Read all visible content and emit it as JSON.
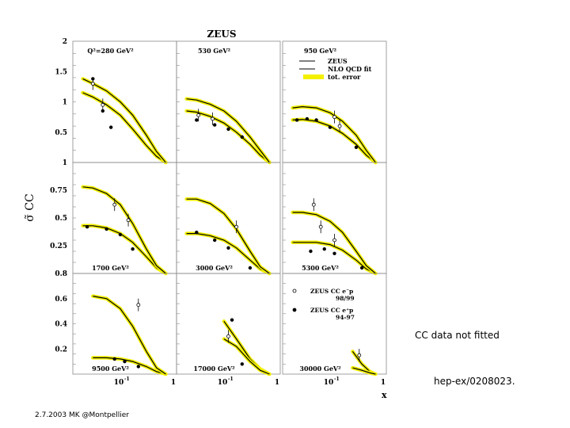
{
  "chart_data": {
    "type": "line",
    "title": "ZEUS",
    "ylabel": "σ̃ CC",
    "xlabel": "x",
    "colors": {
      "band": "#f3f000",
      "line": "#000000",
      "frame": "#8a8a8a"
    },
    "legend_top": {
      "entries": [
        {
          "label": "ZEUS",
          "marker": "line"
        },
        {
          "label": "NLO QCD fit",
          "marker": "line"
        },
        {
          "label": "tot. error",
          "marker": "band"
        }
      ]
    },
    "legend_bottom": {
      "entries": [
        {
          "label": "ZEUS CC e⁻p",
          "sub": "98/99",
          "marker": "open"
        },
        {
          "label": "ZEUS CC e⁺p",
          "sub": "94-97",
          "marker": "filled"
        }
      ]
    },
    "row_ticks": [
      {
        "ylim": [
          0,
          2
        ],
        "ticks": [
          {
            "v": 0.5,
            "label": "0.5"
          },
          {
            "v": 1,
            "label": "1"
          },
          {
            "v": 1.5,
            "label": "1.5"
          },
          {
            "v": 2,
            "label": "2"
          }
        ]
      },
      {
        "ylim": [
          0,
          1
        ],
        "ticks": [
          {
            "v": 0.25,
            "label": "0.25"
          },
          {
            "v": 0.5,
            "label": "0.5"
          },
          {
            "v": 0.75,
            "label": "0.75"
          },
          {
            "v": 1,
            "label": "1"
          }
        ]
      },
      {
        "ylim": [
          0,
          0.8
        ],
        "ticks": [
          {
            "v": 0.2,
            "label": "0.2"
          },
          {
            "v": 0.4,
            "label": "0.4"
          },
          {
            "v": 0.6,
            "label": "0.6"
          },
          {
            "v": 0.8,
            "label": "0.8"
          }
        ]
      }
    ],
    "x_ticks": [
      "10",
      "1",
      "1"
    ],
    "x_tick_exponents": [
      "-1",
      "",
      ""
    ],
    "xlim": [
      0.01,
      1
    ],
    "panels": [
      {
        "q2": "Q²=280 GeV²",
        "curves": [
          {
            "x": [
              0.012,
              0.02,
              0.04,
              0.08,
              0.15,
              0.3,
              0.5,
              0.8
            ],
            "y": [
              1.15,
              1.08,
              0.95,
              0.78,
              0.55,
              0.28,
              0.1,
              0.0
            ]
          },
          {
            "x": [
              0.012,
              0.02,
              0.04,
              0.08,
              0.15,
              0.3,
              0.5,
              0.8
            ],
            "y": [
              1.38,
              1.3,
              1.18,
              1.0,
              0.78,
              0.45,
              0.18,
              0.0
            ]
          }
        ],
        "points_filled": [
          {
            "x": 0.02,
            "y": 1.38
          },
          {
            "x": 0.033,
            "y": 0.85
          },
          {
            "x": 0.05,
            "y": 0.58
          }
        ],
        "points_open": [
          {
            "x": 0.02,
            "y": 1.3
          },
          {
            "x": 0.033,
            "y": 0.95
          }
        ]
      },
      {
        "q2": "530 GeV²",
        "curves": [
          {
            "x": [
              0.012,
              0.02,
              0.04,
              0.08,
              0.15,
              0.3,
              0.5,
              0.8
            ],
            "y": [
              0.85,
              0.83,
              0.76,
              0.65,
              0.5,
              0.3,
              0.12,
              0.0
            ]
          },
          {
            "x": [
              0.012,
              0.02,
              0.04,
              0.08,
              0.15,
              0.3,
              0.5,
              0.8
            ],
            "y": [
              1.05,
              1.03,
              0.96,
              0.85,
              0.68,
              0.42,
              0.2,
              0.0
            ]
          }
        ],
        "points_filled": [
          {
            "x": 0.02,
            "y": 0.7
          },
          {
            "x": 0.05,
            "y": 0.62
          },
          {
            "x": 0.1,
            "y": 0.55
          },
          {
            "x": 0.2,
            "y": 0.42
          }
        ],
        "points_open": [
          {
            "x": 0.022,
            "y": 0.78
          },
          {
            "x": 0.045,
            "y": 0.72
          }
        ]
      },
      {
        "q2": "950 GeV²",
        "curves": [
          {
            "x": [
              0.012,
              0.02,
              0.04,
              0.08,
              0.15,
              0.3,
              0.5,
              0.8
            ],
            "y": [
              0.7,
              0.71,
              0.68,
              0.6,
              0.48,
              0.3,
              0.12,
              0.0
            ]
          },
          {
            "x": [
              0.012,
              0.02,
              0.04,
              0.08,
              0.15,
              0.3,
              0.5,
              0.8
            ],
            "y": [
              0.9,
              0.92,
              0.9,
              0.82,
              0.68,
              0.45,
              0.2,
              0.0
            ]
          }
        ],
        "points_filled": [
          {
            "x": 0.015,
            "y": 0.7
          },
          {
            "x": 0.025,
            "y": 0.72
          },
          {
            "x": 0.04,
            "y": 0.7
          },
          {
            "x": 0.08,
            "y": 0.58
          },
          {
            "x": 0.3,
            "y": 0.25
          }
        ],
        "points_open": [
          {
            "x": 0.1,
            "y": 0.75
          },
          {
            "x": 0.13,
            "y": 0.6
          }
        ]
      },
      {
        "q2": "1700 GeV²",
        "curves": [
          {
            "x": [
              0.012,
              0.02,
              0.04,
              0.08,
              0.15,
              0.3,
              0.5,
              0.8
            ],
            "y": [
              0.43,
              0.43,
              0.41,
              0.36,
              0.28,
              0.15,
              0.05,
              0.0
            ]
          },
          {
            "x": [
              0.012,
              0.02,
              0.04,
              0.08,
              0.15,
              0.3,
              0.5,
              0.8
            ],
            "y": [
              0.78,
              0.77,
              0.72,
              0.62,
              0.45,
              0.22,
              0.07,
              0.0
            ]
          }
        ],
        "points_filled": [
          {
            "x": 0.015,
            "y": 0.42
          },
          {
            "x": 0.04,
            "y": 0.4
          },
          {
            "x": 0.08,
            "y": 0.35
          },
          {
            "x": 0.15,
            "y": 0.22
          }
        ],
        "points_open": [
          {
            "x": 0.06,
            "y": 0.62
          },
          {
            "x": 0.12,
            "y": 0.48
          }
        ]
      },
      {
        "q2": "3000 GeV²",
        "curves": [
          {
            "x": [
              0.012,
              0.02,
              0.04,
              0.08,
              0.15,
              0.3,
              0.5,
              0.8
            ],
            "y": [
              0.36,
              0.36,
              0.34,
              0.3,
              0.23,
              0.12,
              0.04,
              0.0
            ]
          },
          {
            "x": [
              0.012,
              0.02,
              0.04,
              0.08,
              0.15,
              0.3,
              0.5,
              0.8
            ],
            "y": [
              0.67,
              0.67,
              0.63,
              0.54,
              0.4,
              0.2,
              0.06,
              0.0
            ]
          }
        ],
        "points_filled": [
          {
            "x": 0.02,
            "y": 0.37
          },
          {
            "x": 0.05,
            "y": 0.3
          },
          {
            "x": 0.1,
            "y": 0.23
          },
          {
            "x": 0.3,
            "y": 0.05
          }
        ],
        "points_open": [
          {
            "x": 0.15,
            "y": 0.42
          }
        ]
      },
      {
        "q2": "5300 GeV²",
        "curves": [
          {
            "x": [
              0.012,
              0.02,
              0.04,
              0.08,
              0.15,
              0.3,
              0.5,
              0.8
            ],
            "y": [
              0.28,
              0.28,
              0.28,
              0.26,
              0.21,
              0.12,
              0.04,
              0.0
            ]
          },
          {
            "x": [
              0.012,
              0.02,
              0.04,
              0.08,
              0.15,
              0.3,
              0.5,
              0.8
            ],
            "y": [
              0.55,
              0.55,
              0.53,
              0.47,
              0.37,
              0.2,
              0.07,
              0.0
            ]
          }
        ],
        "points_filled": [
          {
            "x": 0.03,
            "y": 0.2
          },
          {
            "x": 0.06,
            "y": 0.22
          },
          {
            "x": 0.1,
            "y": 0.18
          },
          {
            "x": 0.4,
            "y": 0.05
          }
        ],
        "points_open": [
          {
            "x": 0.035,
            "y": 0.62
          },
          {
            "x": 0.05,
            "y": 0.42
          },
          {
            "x": 0.1,
            "y": 0.3
          }
        ]
      },
      {
        "q2": "9500 GeV²",
        "curves": [
          {
            "x": [
              0.02,
              0.04,
              0.08,
              0.15,
              0.3,
              0.5,
              0.8
            ],
            "y": [
              0.13,
              0.13,
              0.12,
              0.1,
              0.06,
              0.02,
              0.0
            ]
          },
          {
            "x": [
              0.02,
              0.04,
              0.08,
              0.15,
              0.3,
              0.5,
              0.8
            ],
            "y": [
              0.62,
              0.6,
              0.52,
              0.38,
              0.18,
              0.05,
              0.0
            ]
          }
        ],
        "points_filled": [
          {
            "x": 0.06,
            "y": 0.12
          },
          {
            "x": 0.1,
            "y": 0.1
          },
          {
            "x": 0.2,
            "y": 0.06
          }
        ],
        "points_open": [
          {
            "x": 0.2,
            "y": 0.55
          }
        ]
      },
      {
        "q2": "17000 GeV²",
        "curves": [
          {
            "x": [
              0.08,
              0.15,
              0.3,
              0.5,
              0.8
            ],
            "y": [
              0.42,
              0.28,
              0.12,
              0.04,
              0.0
            ]
          },
          {
            "x": [
              0.08,
              0.15,
              0.3,
              0.5,
              0.8
            ],
            "y": [
              0.28,
              0.22,
              0.1,
              0.03,
              0.0
            ]
          }
        ],
        "points_filled": [
          {
            "x": 0.12,
            "y": 0.43
          },
          {
            "x": 0.2,
            "y": 0.08
          }
        ],
        "points_open": [
          {
            "x": 0.1,
            "y": 0.3
          }
        ]
      },
      {
        "q2": "30000 GeV²",
        "curves": [
          {
            "x": [
              0.25,
              0.4,
              0.6,
              0.8
            ],
            "y": [
              0.18,
              0.08,
              0.02,
              0.0
            ]
          },
          {
            "x": [
              0.25,
              0.4,
              0.6,
              0.8
            ],
            "y": [
              0.05,
              0.03,
              0.01,
              0.0
            ]
          }
        ],
        "points_filled": [],
        "points_open": [
          {
            "x": 0.35,
            "y": 0.15
          }
        ]
      }
    ]
  },
  "annotations": {
    "cc_note": "CC data not fitted",
    "reference": "hep-ex/0208023."
  },
  "footer": "2.7.2003 MK @Montpellier"
}
